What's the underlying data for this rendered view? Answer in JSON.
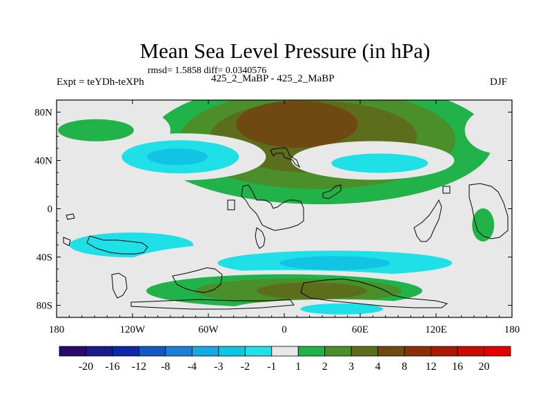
{
  "chart_data": {
    "type": "heatmap",
    "title": "Mean Sea Level Pressure (in hPa)",
    "subtitle": "rmsd= 1.5858 diff= 0.0340576",
    "left_label": "Expt = teYDh-teXPh",
    "center_label": "425_2_MaBP - 425_2_MaBP",
    "right_label": "DJF",
    "x_axis": {
      "range": [
        -180,
        180
      ],
      "ticks": [
        {
          "value": -180,
          "label": "180"
        },
        {
          "value": -120,
          "label": "120W"
        },
        {
          "value": -60,
          "label": "60W"
        },
        {
          "value": 0,
          "label": "0"
        },
        {
          "value": 60,
          "label": "60E"
        },
        {
          "value": 120,
          "label": "120E"
        },
        {
          "value": 180,
          "label": "180"
        }
      ]
    },
    "y_axis": {
      "range": [
        -90,
        90
      ],
      "ticks": [
        {
          "value": 80,
          "label": "80N"
        },
        {
          "value": 40,
          "label": "40N"
        },
        {
          "value": 0,
          "label": "0"
        },
        {
          "value": -40,
          "label": "40S"
        },
        {
          "value": -80,
          "label": "80S"
        }
      ]
    },
    "colorbar": {
      "labels": [
        "-20",
        "-16",
        "-12",
        "-8",
        "-4",
        "-3",
        "-2",
        "-1",
        "1",
        "2",
        "3",
        "4",
        "8",
        "12",
        "16",
        "20"
      ],
      "colors": [
        "#2a0a6e",
        "#1a1a8c",
        "#0c2aa8",
        "#1358c0",
        "#1a80d4",
        "#1aa6e0",
        "#12c4e4",
        "#1fe0e6",
        "#e8e8e8",
        "#22b24a",
        "#4a8f2a",
        "#5c6e1c",
        "#6e4a12",
        "#8a3008",
        "#a81a04",
        "#c80a00",
        "#e20000"
      ]
    },
    "regions": [
      {
        "name": "arctic-ridge",
        "lon": 10,
        "lat": 70,
        "levels": [
          1,
          2,
          3,
          4,
          8
        ]
      },
      {
        "name": "siberian-high-west",
        "lon": -150,
        "lat": 65,
        "levels": [
          1,
          2
        ]
      },
      {
        "name": "siberian-high-east",
        "lon": 170,
        "lat": 65,
        "levels": [
          1
        ]
      },
      {
        "name": "n-pacific-low",
        "lon": -80,
        "lat": 43,
        "levels": [
          -1,
          -2,
          -3
        ]
      },
      {
        "name": "n-atlantic-low",
        "lon": 70,
        "lat": 40,
        "levels": [
          -1,
          -2
        ]
      },
      {
        "name": "s-ocean-trough-west",
        "lon": -110,
        "lat": -30,
        "levels": [
          -1,
          -2
        ]
      },
      {
        "name": "s-ocean-trough-east",
        "lon": 40,
        "lat": -45,
        "levels": [
          -1,
          -2,
          -3
        ]
      },
      {
        "name": "antarctic-ridge",
        "lon": 0,
        "lat": -68,
        "levels": [
          1,
          2,
          3,
          4
        ]
      },
      {
        "name": "polar-low",
        "lon": 40,
        "lat": -83,
        "levels": [
          -1,
          -2
        ]
      },
      {
        "name": "w-pacific-high",
        "lon": 155,
        "lat": -10,
        "levels": [
          1,
          2
        ]
      }
    ]
  }
}
